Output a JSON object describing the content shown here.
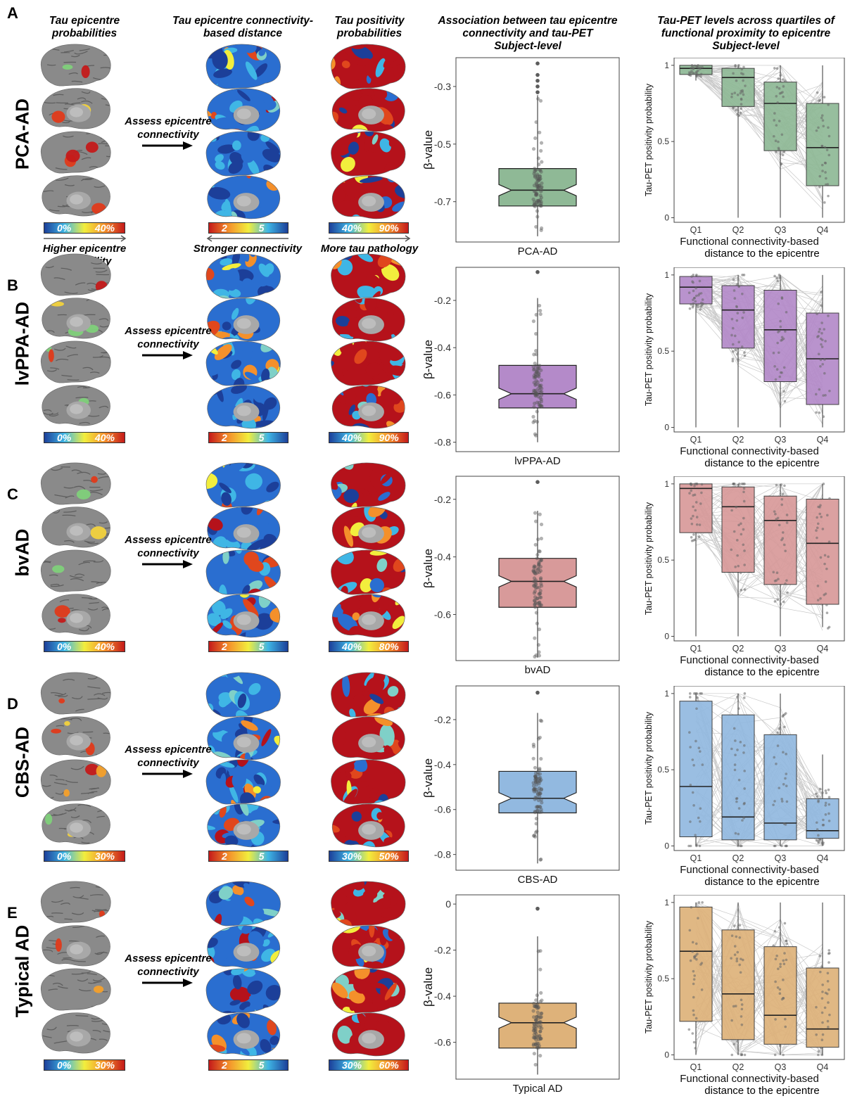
{
  "headers": {
    "col1": [
      "Tau epicentre",
      "probabilities"
    ],
    "col2": [
      "Tau epicentre connectivity-",
      "based distance"
    ],
    "col3": [
      "Tau positivity",
      "probabilities"
    ],
    "col4": [
      "Association between tau epicentre",
      "connectivity and tau-PET"
    ],
    "col5": [
      "Tau-PET levels across quartiles of",
      "functional proximity to epicentre"
    ],
    "sub4": "Subject-level",
    "sub5": "Subject-level"
  },
  "captions": {
    "higher_epicentre": [
      "Higher epicentre",
      "probability"
    ],
    "stronger_conn": "Stronger connectivity",
    "more_tau": "More tau pathology"
  },
  "assess_text": [
    "Assess epicentre",
    "connectivity"
  ],
  "colors": {
    "box_A": "#8fb996",
    "box_B": "#b48ac9",
    "box_C": "#d89a9a",
    "box_D": "#92b9e0",
    "box_E": "#deb27a"
  },
  "rows": [
    {
      "letter": "A",
      "cond": "PCA-AD",
      "cb1": [
        "0%",
        "40%"
      ],
      "cb2": [
        "2",
        "5"
      ],
      "cb3": [
        "40%",
        "90%"
      ]
    },
    {
      "letter": "B",
      "cond": "lvPPA-AD",
      "cb1": [
        "0%",
        "40%"
      ],
      "cb2": [
        "2",
        "5"
      ],
      "cb3": [
        "40%",
        "90%"
      ]
    },
    {
      "letter": "C",
      "cond": "bvAD",
      "cb1": [
        "0%",
        "40%"
      ],
      "cb2": [
        "2",
        "5"
      ],
      "cb3": [
        "40%",
        "80%"
      ]
    },
    {
      "letter": "D",
      "cond": "CBS-AD",
      "cb1": [
        "0%",
        "30%"
      ],
      "cb2": [
        "2",
        "5"
      ],
      "cb3": [
        "30%",
        "50%"
      ]
    },
    {
      "letter": "E",
      "cond": "Typical AD",
      "cb1": [
        "0%",
        "30%"
      ],
      "cb2": [
        "2",
        "5"
      ],
      "cb3": [
        "30%",
        "60%"
      ]
    }
  ],
  "chart_data": [
    {
      "type": "box",
      "panel": "A",
      "ylabel": "β-value",
      "xlabel": "PCA-AD",
      "yticks": [
        -0.3,
        -0.5,
        -0.7
      ],
      "ylim": [
        -0.84,
        -0.2
      ],
      "box": {
        "q1": -0.715,
        "median": -0.66,
        "q3": -0.585,
        "whisker_low": -0.82,
        "whisker_high": -0.33,
        "outliers": [
          -0.22,
          -0.26,
          -0.28,
          -0.3,
          -0.32
        ]
      }
    },
    {
      "type": "box",
      "panel": "A",
      "ylabel": "Tau-PET positivity probability",
      "xlabel": "Functional connectivity-based distance to the epicentre",
      "categories": [
        "Q1",
        "Q2",
        "Q3",
        "Q4"
      ],
      "yticks": [
        0.0,
        0.5,
        1.0
      ],
      "ylim": [
        -0.03,
        1.05
      ],
      "boxes": [
        {
          "q1": 0.94,
          "median": 0.98,
          "q3": 1.0,
          "lo": 0.9,
          "hi": 1.0
        },
        {
          "q1": 0.73,
          "median": 0.92,
          "q3": 0.98,
          "lo": 0.0,
          "hi": 1.0
        },
        {
          "q1": 0.44,
          "median": 0.75,
          "q3": 0.89,
          "lo": 0.0,
          "hi": 1.0
        },
        {
          "q1": 0.21,
          "median": 0.46,
          "q3": 0.75,
          "lo": 0.0,
          "hi": 1.0
        }
      ]
    },
    {
      "type": "box",
      "panel": "B",
      "ylabel": "β-value",
      "xlabel": "lvPPA-AD",
      "yticks": [
        -0.2,
        -0.4,
        -0.6,
        -0.8
      ],
      "ylim": [
        -0.84,
        -0.06
      ],
      "box": {
        "q1": -0.655,
        "median": -0.595,
        "q3": -0.475,
        "whisker_low": -0.8,
        "whisker_high": -0.19,
        "outliers": [
          -0.08
        ]
      }
    },
    {
      "type": "box",
      "panel": "B",
      "ylabel": "Tau-PET positivity probability",
      "xlabel": "Functional connectivity-based distance to the epicentre",
      "categories": [
        "Q1",
        "Q2",
        "Q3",
        "Q4"
      ],
      "yticks": [
        0.0,
        0.5,
        1.0
      ],
      "ylim": [
        -0.03,
        1.05
      ],
      "boxes": [
        {
          "q1": 0.81,
          "median": 0.92,
          "q3": 0.99,
          "lo": 0.0,
          "hi": 1.0
        },
        {
          "q1": 0.52,
          "median": 0.77,
          "q3": 0.93,
          "lo": 0.0,
          "hi": 1.0
        },
        {
          "q1": 0.3,
          "median": 0.64,
          "q3": 0.9,
          "lo": 0.0,
          "hi": 1.0
        },
        {
          "q1": 0.15,
          "median": 0.45,
          "q3": 0.75,
          "lo": 0.0,
          "hi": 1.0
        }
      ]
    },
    {
      "type": "box",
      "panel": "C",
      "ylabel": "β-value",
      "xlabel": "bvAD",
      "yticks": [
        -0.2,
        -0.4,
        -0.6
      ],
      "ylim": [
        -0.76,
        -0.12
      ],
      "box": {
        "q1": -0.575,
        "median": -0.485,
        "q3": -0.405,
        "whisker_low": -0.75,
        "whisker_high": -0.24,
        "outliers": [
          -0.14
        ]
      }
    },
    {
      "type": "box",
      "panel": "C",
      "ylabel": "Tau-PET positivity probability",
      "xlabel": "Functional connectivity-based distance to the epicentre",
      "categories": [
        "Q1",
        "Q2",
        "Q3",
        "Q4"
      ],
      "yticks": [
        0.0,
        0.5,
        1.0
      ],
      "ylim": [
        -0.03,
        1.05
      ],
      "boxes": [
        {
          "q1": 0.68,
          "median": 0.97,
          "q3": 1.0,
          "lo": 0.0,
          "hi": 1.0
        },
        {
          "q1": 0.42,
          "median": 0.85,
          "q3": 0.98,
          "lo": 0.0,
          "hi": 1.0
        },
        {
          "q1": 0.34,
          "median": 0.76,
          "q3": 0.92,
          "lo": 0.0,
          "hi": 1.0
        },
        {
          "q1": 0.21,
          "median": 0.61,
          "q3": 0.9,
          "lo": 0.06,
          "hi": 1.0
        }
      ]
    },
    {
      "type": "box",
      "panel": "D",
      "ylabel": "β-value",
      "xlabel": "CBS-AD",
      "yticks": [
        -0.2,
        -0.4,
        -0.6,
        -0.8
      ],
      "ylim": [
        -0.87,
        -0.05
      ],
      "box": {
        "q1": -0.615,
        "median": -0.55,
        "q3": -0.43,
        "whisker_low": -0.84,
        "whisker_high": -0.17,
        "outliers": [
          -0.08
        ]
      }
    },
    {
      "type": "box",
      "panel": "D",
      "ylabel": "Tau-PET positivity probability",
      "xlabel": "Functional connectivity-based distance to the epicentre",
      "categories": [
        "Q1",
        "Q2",
        "Q3",
        "Q4"
      ],
      "yticks": [
        0.0,
        0.5,
        1.0
      ],
      "ylim": [
        -0.03,
        1.05
      ],
      "boxes": [
        {
          "q1": 0.06,
          "median": 0.39,
          "q3": 0.95,
          "lo": 0.0,
          "hi": 1.0
        },
        {
          "q1": 0.04,
          "median": 0.19,
          "q3": 0.86,
          "lo": 0.0,
          "hi": 1.0
        },
        {
          "q1": 0.04,
          "median": 0.15,
          "q3": 0.73,
          "lo": 0.0,
          "hi": 1.0
        },
        {
          "q1": 0.05,
          "median": 0.1,
          "q3": 0.31,
          "lo": 0.0,
          "hi": 0.6
        }
      ]
    },
    {
      "type": "box",
      "panel": "E",
      "ylabel": "β-value",
      "xlabel": "Typical AD",
      "yticks": [
        0.0,
        -0.2,
        -0.4,
        -0.6
      ],
      "ylim": [
        -0.76,
        0.04
      ],
      "box": {
        "q1": -0.625,
        "median": -0.515,
        "q3": -0.43,
        "whisker_low": -0.74,
        "whisker_high": -0.14,
        "outliers": [
          -0.02
        ]
      }
    },
    {
      "type": "box",
      "panel": "E",
      "ylabel": "Tau-PET positivity probability",
      "xlabel": "Functional connectivity-based distance to the epicentre",
      "categories": [
        "Q1",
        "Q2",
        "Q3",
        "Q4"
      ],
      "yticks": [
        0.0,
        0.5,
        1.0
      ],
      "ylim": [
        -0.03,
        1.05
      ],
      "boxes": [
        {
          "q1": 0.22,
          "median": 0.68,
          "q3": 0.97,
          "lo": 0.0,
          "hi": 1.0
        },
        {
          "q1": 0.1,
          "median": 0.4,
          "q3": 0.82,
          "lo": 0.0,
          "hi": 1.0
        },
        {
          "q1": 0.07,
          "median": 0.26,
          "q3": 0.71,
          "lo": 0.0,
          "hi": 1.0
        },
        {
          "q1": 0.05,
          "median": 0.17,
          "q3": 0.57,
          "lo": 0.0,
          "hi": 1.0
        }
      ]
    }
  ]
}
